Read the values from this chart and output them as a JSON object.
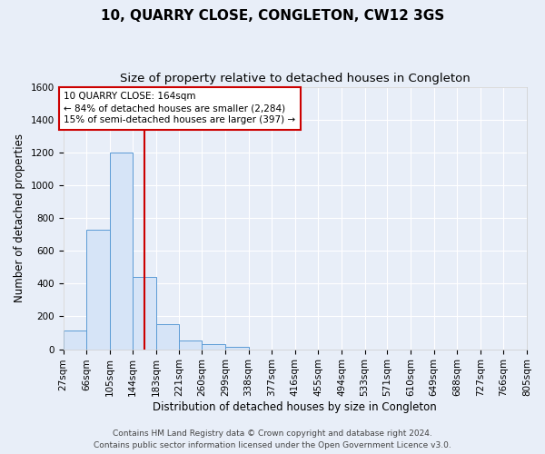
{
  "title": "10, QUARRY CLOSE, CONGLETON, CW12 3GS",
  "subtitle": "Size of property relative to detached houses in Congleton",
  "xlabel": "Distribution of detached houses by size in Congleton",
  "ylabel": "Number of detached properties",
  "footer_line1": "Contains HM Land Registry data © Crown copyright and database right 2024.",
  "footer_line2": "Contains public sector information licensed under the Open Government Licence v3.0.",
  "annotation_line1": "10 QUARRY CLOSE: 164sqm",
  "annotation_line2": "← 84% of detached houses are smaller (2,284)",
  "annotation_line3": "15% of semi-detached houses are larger (397) →",
  "bar_edges": [
    27,
    66,
    105,
    144,
    183,
    221,
    260,
    299,
    338,
    377,
    416,
    455,
    494,
    533,
    571,
    610,
    649,
    688,
    727,
    766,
    805
  ],
  "bar_heights": [
    115,
    730,
    1200,
    440,
    150,
    55,
    30,
    15,
    0,
    0,
    0,
    0,
    0,
    0,
    0,
    0,
    0,
    0,
    0,
    0
  ],
  "bar_color": "#d6e4f7",
  "bar_edge_color": "#5b9bd5",
  "vline_x": 164,
  "vline_color": "#cc0000",
  "ylim": [
    0,
    1600
  ],
  "yticks": [
    0,
    200,
    400,
    600,
    800,
    1000,
    1200,
    1400,
    1600
  ],
  "background_color": "#e8eef8",
  "grid_color": "#ffffff",
  "title_fontsize": 11,
  "subtitle_fontsize": 9.5,
  "axis_label_fontsize": 8.5,
  "tick_fontsize": 7.5,
  "annotation_fontsize": 7.5,
  "footer_fontsize": 6.5
}
